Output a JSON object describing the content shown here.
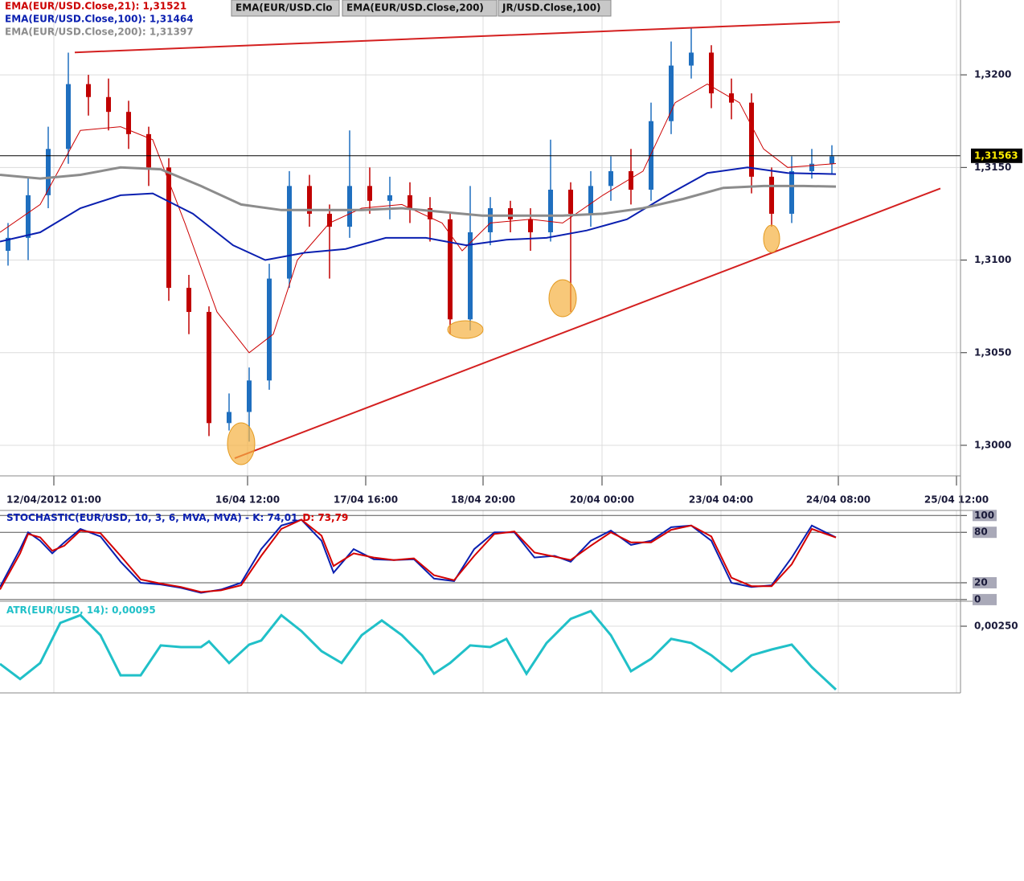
{
  "chart_data": [
    {
      "type": "candlestick",
      "xlim": [
        0,
        239
      ],
      "xticks": [
        {
          "value": 13.4,
          "label": "12/04/2012 01:00"
        },
        {
          "value": 61.6,
          "label": "16/04 12:00"
        },
        {
          "value": 91,
          "label": "17/04 16:00"
        },
        {
          "value": 120.2,
          "label": "18/04 20:00"
        },
        {
          "value": 149.8,
          "label": "20/04 00:00"
        },
        {
          "value": 179.4,
          "label": "23/04 04:00"
        },
        {
          "value": 208.6,
          "label": "24/04 08:00"
        },
        {
          "value": 238,
          "label": "25/04 12:00"
        }
      ],
      "ylim": [
        1.29835,
        1.32404
      ],
      "yticks": [
        {
          "value": 1.3,
          "label": "1,3000"
        },
        {
          "value": 1.305,
          "label": "1,3050"
        },
        {
          "value": 1.31,
          "label": "1,3100"
        },
        {
          "value": 1.315,
          "label": "1,3150"
        },
        {
          "value": 1.32,
          "label": "1,3200"
        }
      ],
      "grid": true,
      "up_color": "#1f6fbf",
      "down_color": "#c00000",
      "candles": {
        "x": [
          2,
          7,
          12,
          17,
          22,
          27,
          32,
          37,
          42,
          47,
          52,
          57,
          62,
          67,
          72,
          77,
          82,
          87,
          92,
          97,
          102,
          107,
          112,
          117,
          122,
          127,
          132,
          137,
          142,
          147,
          152,
          157,
          162,
          167,
          172,
          177,
          182,
          187,
          192,
          197,
          202,
          207
        ],
        "open": [
          1.3105,
          1.3112,
          1.3135,
          1.316,
          1.3195,
          1.3188,
          1.318,
          1.3168,
          1.315,
          1.3085,
          1.3072,
          1.3012,
          1.3018,
          1.3035,
          1.309,
          1.314,
          1.3125,
          1.3118,
          1.314,
          1.3132,
          1.3135,
          1.3128,
          1.3122,
          1.3068,
          1.3115,
          1.3128,
          1.3122,
          1.3115,
          1.3138,
          1.3125,
          1.314,
          1.3148,
          1.3138,
          1.3175,
          1.3205,
          1.3212,
          1.319,
          1.3185,
          1.3145,
          1.3125,
          1.3148,
          1.3152
        ],
        "high": [
          1.312,
          1.3145,
          1.3172,
          1.3212,
          1.32,
          1.3198,
          1.3186,
          1.3172,
          1.3155,
          1.3092,
          1.3075,
          1.3028,
          1.3042,
          1.3098,
          1.3148,
          1.3146,
          1.313,
          1.317,
          1.315,
          1.3145,
          1.3142,
          1.3134,
          1.3126,
          1.314,
          1.3134,
          1.3132,
          1.3128,
          1.3165,
          1.3142,
          1.3148,
          1.3156,
          1.316,
          1.3185,
          1.3218,
          1.3225,
          1.3216,
          1.3198,
          1.319,
          1.315,
          1.3156,
          1.316,
          1.3162
        ],
        "low": [
          1.3097,
          1.31,
          1.3128,
          1.3152,
          1.3178,
          1.317,
          1.316,
          1.314,
          1.3078,
          1.306,
          1.3005,
          1.3008,
          1.3002,
          1.303,
          1.3085,
          1.3118,
          1.309,
          1.3112,
          1.3125,
          1.3122,
          1.312,
          1.311,
          1.306,
          1.3062,
          1.3108,
          1.3115,
          1.3105,
          1.311,
          1.3072,
          1.3118,
          1.3132,
          1.313,
          1.3132,
          1.3168,
          1.3198,
          1.3182,
          1.3176,
          1.3136,
          1.3118,
          1.312,
          1.3144,
          1.3146
        ],
        "close": [
          1.3112,
          1.3135,
          1.316,
          1.3195,
          1.3188,
          1.318,
          1.3168,
          1.315,
          1.3085,
          1.3072,
          1.3012,
          1.3018,
          1.3035,
          1.309,
          1.314,
          1.3125,
          1.3118,
          1.314,
          1.3132,
          1.3135,
          1.3128,
          1.3122,
          1.3068,
          1.3115,
          1.3128,
          1.3122,
          1.3115,
          1.3138,
          1.3125,
          1.314,
          1.3148,
          1.3138,
          1.3175,
          1.3205,
          1.3212,
          1.319,
          1.3185,
          1.3145,
          1.3125,
          1.3148,
          1.3152,
          1.3156
        ]
      },
      "series": [
        {
          "name": "EMA(EUR/USD.Close,21): 1,31521",
          "color": "#cc0000",
          "width": 1,
          "x": [
            0,
            10,
            20,
            30,
            38,
            46,
            54,
            62,
            68,
            74,
            82,
            90,
            100,
            110,
            115,
            122,
            132,
            140,
            150,
            160,
            168,
            176,
            184,
            190,
            196,
            208
          ],
          "values": [
            1.3115,
            1.313,
            1.317,
            1.3172,
            1.3165,
            1.312,
            1.3072,
            1.305,
            1.306,
            1.31,
            1.312,
            1.3128,
            1.313,
            1.312,
            1.3105,
            1.312,
            1.3122,
            1.312,
            1.3135,
            1.3148,
            1.3185,
            1.3195,
            1.3185,
            1.316,
            1.315,
            1.31521
          ]
        },
        {
          "name": "EMA(EUR/USD.Close,100): 1,31464",
          "color": "#0a1fb0",
          "width": 2,
          "x": [
            0,
            10,
            20,
            30,
            38,
            48,
            58,
            66,
            76,
            86,
            96,
            106,
            116,
            126,
            136,
            146,
            156,
            166,
            176,
            186,
            196,
            208
          ],
          "values": [
            1.311,
            1.3115,
            1.3128,
            1.3135,
            1.3136,
            1.3125,
            1.3108,
            1.31,
            1.3104,
            1.3106,
            1.3112,
            1.3112,
            1.3108,
            1.3111,
            1.3112,
            1.3116,
            1.3122,
            1.3135,
            1.3147,
            1.315,
            1.3147,
            1.31464
          ]
        },
        {
          "name": "EMA(EUR/USD.Close,200): 1,31397",
          "color": "#8c8c8c",
          "width": 3,
          "x": [
            0,
            10,
            20,
            30,
            40,
            50,
            60,
            70,
            80,
            90,
            100,
            110,
            120,
            130,
            140,
            150,
            160,
            170,
            180,
            190,
            200,
            208
          ],
          "values": [
            1.3146,
            1.3144,
            1.3146,
            1.315,
            1.3149,
            1.314,
            1.313,
            1.3127,
            1.3127,
            1.3127,
            1.3128,
            1.3126,
            1.3124,
            1.3124,
            1.3124,
            1.3125,
            1.3128,
            1.3133,
            1.3139,
            1.314,
            1.314,
            1.31397
          ]
        }
      ],
      "trend_lines": [
        {
          "x": [
            18.6,
            209
          ],
          "values": [
            1.32121,
            1.32286
          ],
          "color": "#d42020"
        },
        {
          "x": [
            58.4,
            234
          ],
          "values": [
            1.2993,
            1.31387
          ],
          "color": "#d42020"
        }
      ],
      "last_price": {
        "value": 1.31563,
        "label": "1,31563"
      },
      "annotations": [
        "EMA(EUR/USD.Clo",
        "EMA(EUR/USD.Close,200)",
        "JR/USD.Close,100)"
      ]
    },
    {
      "type": "line",
      "ylim": [
        -2,
        106
      ],
      "yticks": [
        0,
        20,
        80,
        100
      ],
      "series": [
        {
          "name": "STOCHASTIC(EUR/USD, 10, 3, 6, MVA, MVA) -  K: 74,01",
          "color": "#0a1fb0",
          "x": [
            0,
            5,
            7,
            10,
            13,
            16,
            20,
            25,
            30,
            35,
            40,
            45,
            50,
            55,
            60,
            65,
            70,
            75,
            80,
            83,
            88,
            93,
            98,
            103,
            108,
            113,
            118,
            123,
            128,
            133,
            138,
            142,
            147,
            152,
            157,
            162,
            167,
            172,
            177,
            182,
            187,
            192,
            197,
            202,
            208
          ],
          "values": [
            15,
            60,
            80,
            70,
            55,
            68,
            84,
            75,
            45,
            20,
            18,
            14,
            8,
            12,
            20,
            60,
            88,
            95,
            70,
            32,
            60,
            48,
            47,
            48,
            25,
            22,
            60,
            80,
            80,
            50,
            52,
            45,
            70,
            82,
            65,
            70,
            86,
            88,
            70,
            20,
            15,
            17,
            50,
            88,
            74.01
          ]
        },
        {
          "name": "D: 73,79",
          "color": "#d40000",
          "x": [
            0,
            5,
            7,
            10,
            13,
            16,
            20,
            25,
            30,
            35,
            40,
            45,
            50,
            55,
            60,
            65,
            70,
            75,
            80,
            83,
            88,
            93,
            98,
            103,
            108,
            113,
            118,
            123,
            128,
            133,
            138,
            142,
            147,
            152,
            157,
            162,
            167,
            172,
            177,
            182,
            187,
            192,
            197,
            202,
            208
          ],
          "values": [
            12,
            55,
            78,
            74,
            58,
            64,
            82,
            79,
            52,
            24,
            19,
            15,
            9,
            11,
            17,
            52,
            84,
            95,
            76,
            40,
            55,
            50,
            47,
            49,
            29,
            23,
            52,
            78,
            81,
            56,
            51,
            47,
            64,
            80,
            68,
            68,
            83,
            88,
            75,
            26,
            16,
            16,
            42,
            84,
            73.79
          ]
        }
      ]
    },
    {
      "type": "line",
      "ylim": [
        0.00087,
        0.00307
      ],
      "yticks": [
        {
          "value": 0.0025,
          "label": "0,00250"
        }
      ],
      "series": [
        {
          "name": "ATR(EUR/USD, 14): 0,00095",
          "color": "#20c0c8",
          "x": [
            0,
            5,
            10,
            15,
            20,
            25,
            30,
            35,
            40,
            45,
            50,
            52,
            57,
            62,
            65,
            70,
            75,
            80,
            85,
            90,
            95,
            100,
            105,
            108,
            112,
            117,
            122,
            126,
            131,
            136,
            142,
            147,
            152,
            157,
            162,
            167,
            172,
            177,
            182,
            187,
            192,
            197,
            202,
            208
          ],
          "values": [
            0.00158,
            0.00121,
            0.0016,
            0.00258,
            0.00277,
            0.00228,
            0.0013,
            0.0013,
            0.00203,
            0.00199,
            0.00199,
            0.00213,
            0.0016,
            0.00205,
            0.00215,
            0.00277,
            0.00238,
            0.00189,
            0.0016,
            0.00228,
            0.00264,
            0.00228,
            0.00179,
            0.00134,
            0.0016,
            0.00203,
            0.00199,
            0.00219,
            0.00134,
            0.00209,
            0.00268,
            0.00287,
            0.00228,
            0.0014,
            0.0017,
            0.00219,
            0.00209,
            0.00179,
            0.0014,
            0.00179,
            0.00193,
            0.00205,
            0.0015,
            0.00095
          ]
        }
      ]
    }
  ]
}
